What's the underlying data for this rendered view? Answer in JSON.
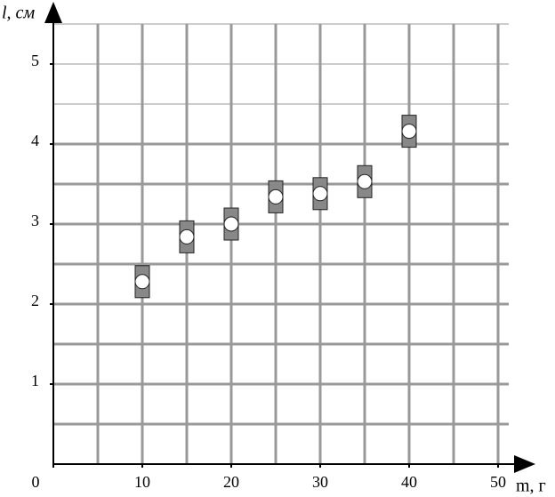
{
  "chart_data": {
    "type": "scatter",
    "xlabel": "m, г",
    "ylabel": "l, см",
    "x": [
      10,
      15,
      20,
      25,
      30,
      35,
      40
    ],
    "values": [
      2.28,
      2.84,
      3.0,
      3.34,
      3.38,
      3.53,
      4.16
    ],
    "errors": [
      0.2,
      0.2,
      0.2,
      0.2,
      0.2,
      0.2,
      0.2
    ],
    "xlim": [
      0,
      54
    ],
    "ylim": [
      0,
      5.7
    ],
    "xticks": [
      0,
      10,
      20,
      30,
      40,
      50
    ],
    "yticks": [
      1,
      2,
      3,
      4,
      5
    ],
    "xgrid": [
      5,
      10,
      15,
      20,
      25,
      30,
      35,
      40,
      45,
      50
    ],
    "ygrid": [
      0.5,
      1,
      1.5,
      2,
      2.5,
      3,
      3.5,
      4,
      4.5,
      5,
      5.5
    ],
    "grid": true,
    "color": "#888888"
  }
}
